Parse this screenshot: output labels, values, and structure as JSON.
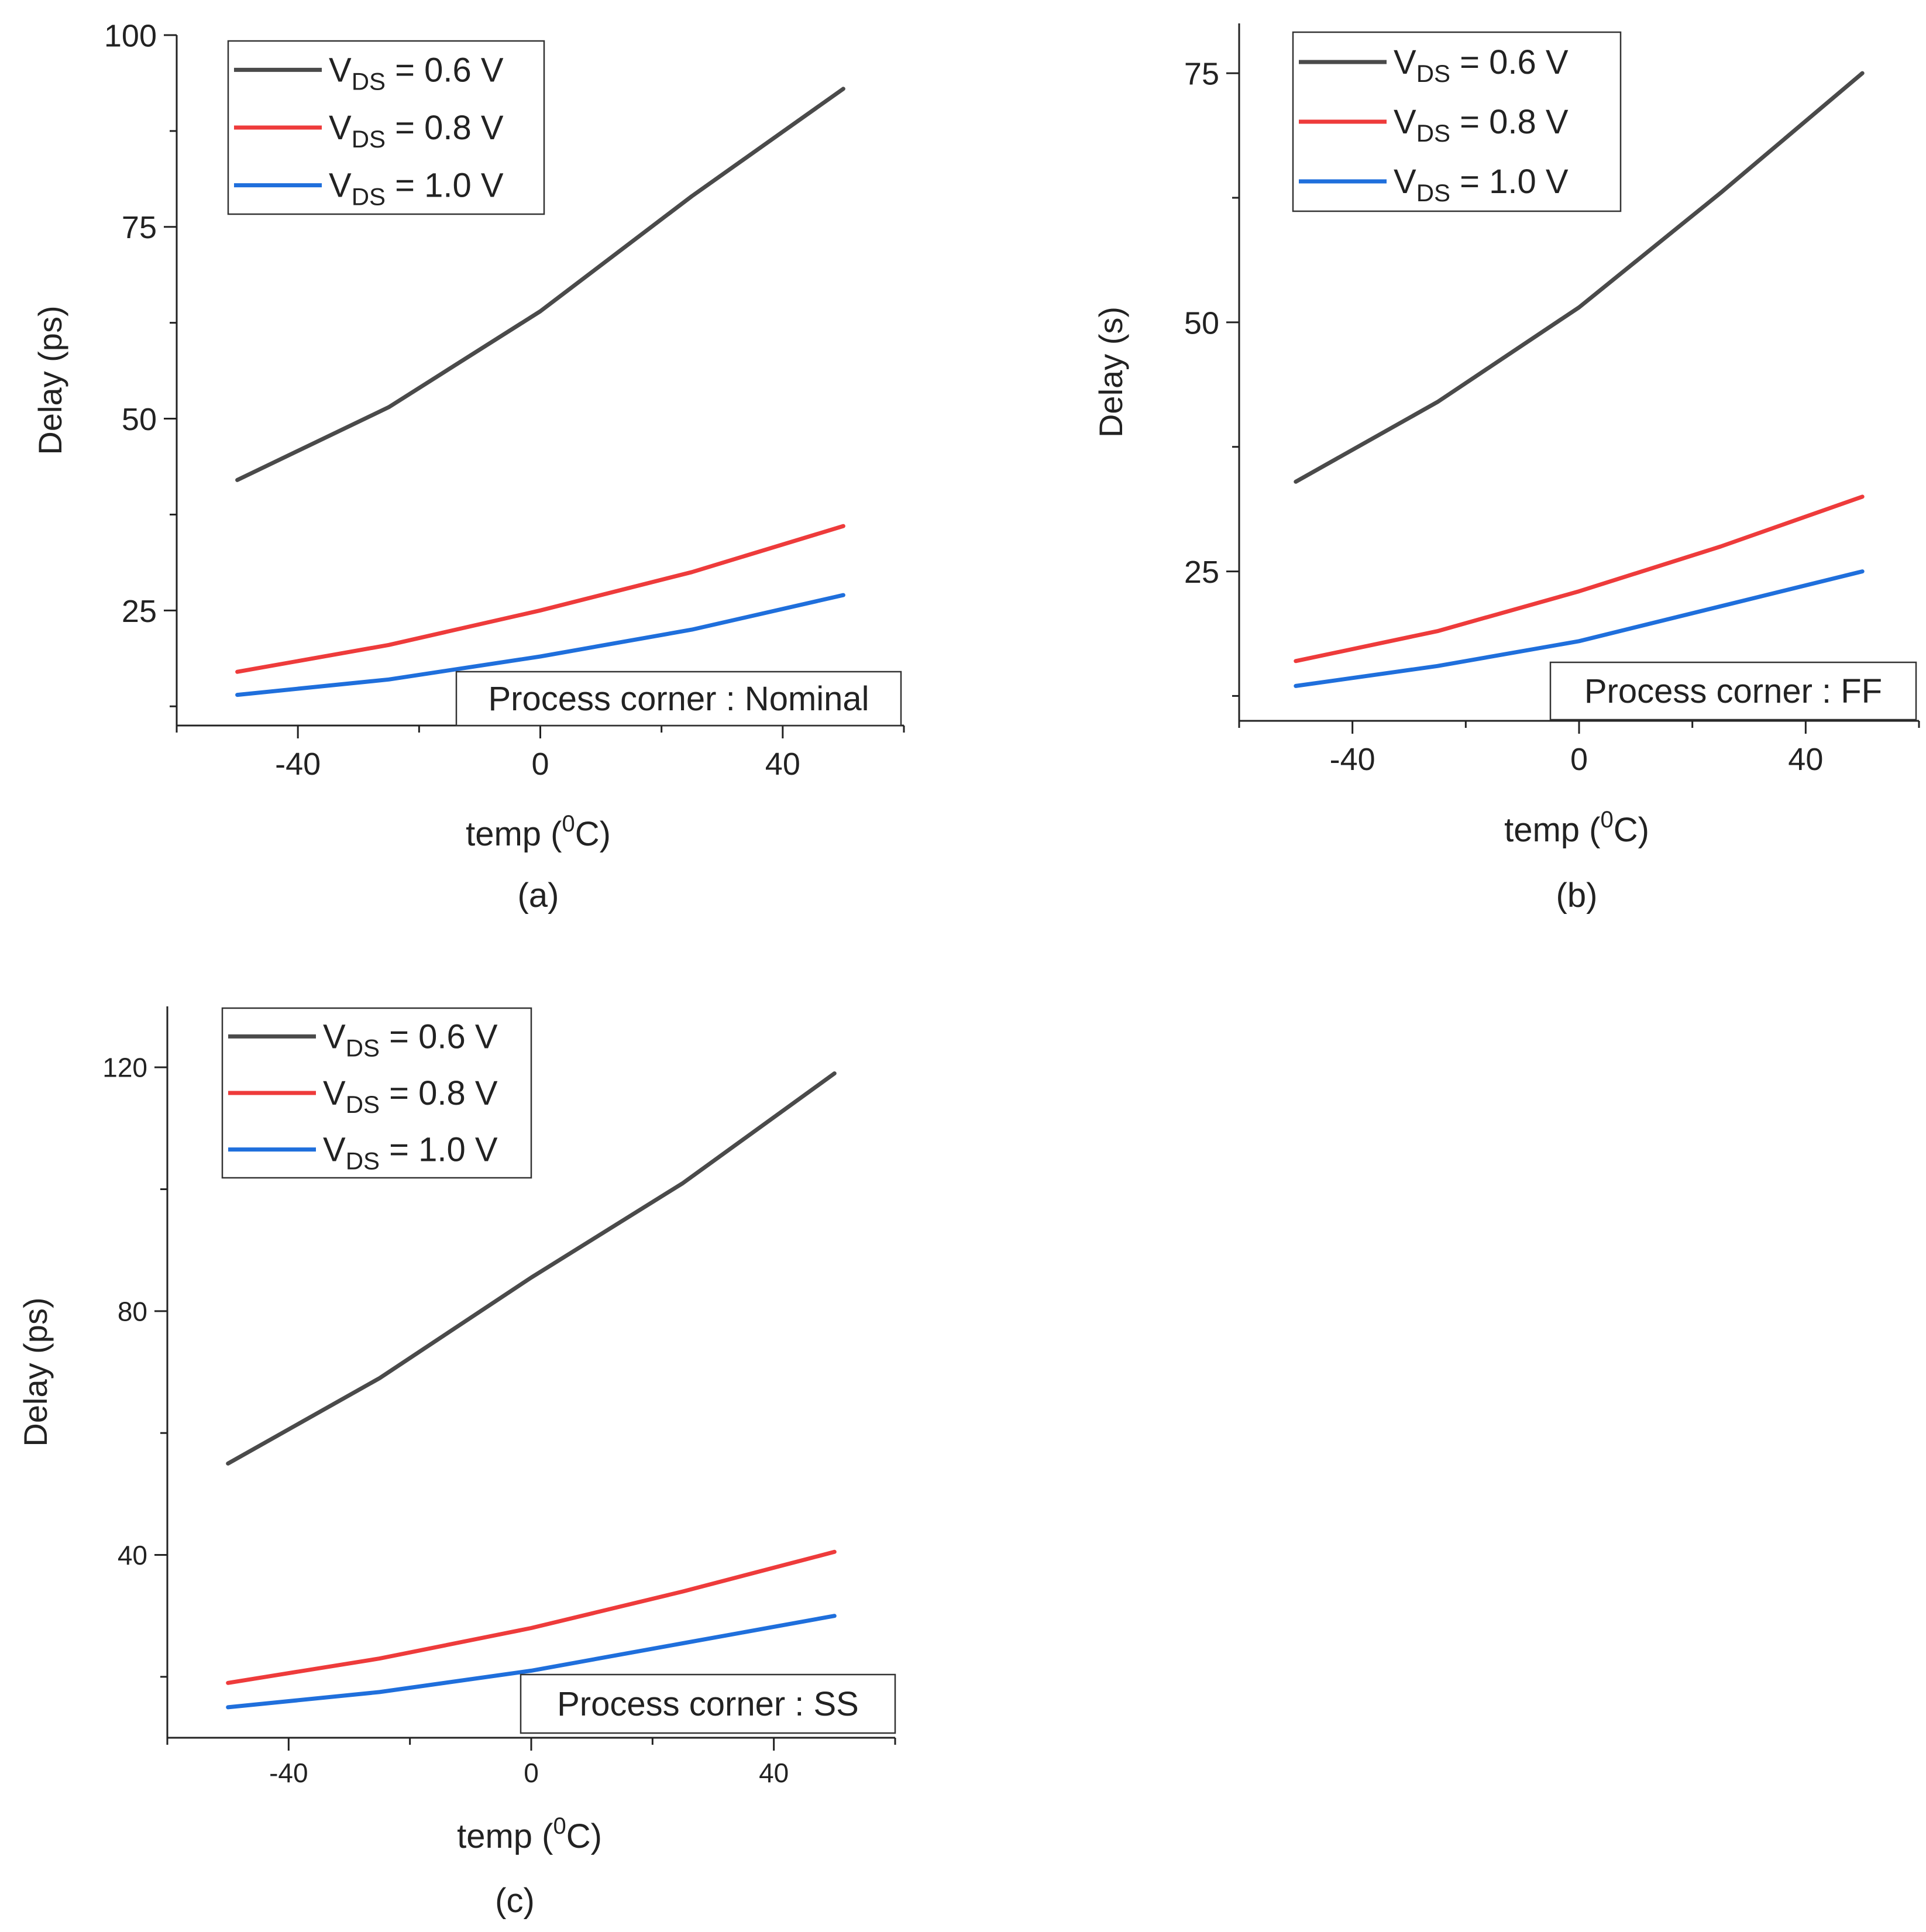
{
  "series_colors": {
    "0.6": "#4a4a4a",
    "0.8": "#ee3b3b",
    "1.0": "#1f6fdc"
  },
  "chart_data": [
    {
      "type": "line",
      "panel_label": "(a)",
      "xlabel_main": "temp (",
      "xlabel_sup": "0",
      "xlabel_end": "C)",
      "ylabel": "Delay (ps)",
      "annotation": "Process corner : Nominal",
      "xlim": [
        -60,
        60
      ],
      "ylim": [
        10,
        100
      ],
      "xticks": [
        -40,
        0,
        40
      ],
      "xticklabels": [
        "-40",
        "0",
        "40"
      ],
      "yticks": [
        25,
        50,
        75,
        100
      ],
      "yticklabels": [
        "25",
        "50",
        "75",
        "100"
      ],
      "yminor": [
        12.5,
        37.5,
        62.5,
        87.5
      ],
      "xminor": [
        -60,
        -20,
        20,
        60
      ],
      "legend_position": "top-left",
      "x": [
        -50,
        -25,
        0,
        25,
        50
      ],
      "series": [
        {
          "key": "0.6",
          "label_main": "V",
          "label_sub": "DS",
          "label_end": " = 0.6 V",
          "values": [
            42,
            51.5,
            64,
            79,
            93
          ]
        },
        {
          "key": "0.8",
          "label_main": "V",
          "label_sub": "DS",
          "label_end": " = 0.8 V",
          "values": [
            17,
            20.5,
            25,
            30,
            36
          ]
        },
        {
          "key": "1.0",
          "label_main": "V",
          "label_sub": "DS",
          "label_end": " = 1.0 V",
          "values": [
            14,
            16,
            19,
            22.5,
            27
          ]
        }
      ]
    },
    {
      "type": "line",
      "panel_label": "(b)",
      "xlabel_main": "temp (",
      "xlabel_sup": "0",
      "xlabel_end": "C)",
      "ylabel": "Delay (s)",
      "annotation": "Process corner : FF",
      "xlim": [
        -60,
        60
      ],
      "ylim": [
        10,
        80
      ],
      "xticks": [
        -40,
        0,
        40
      ],
      "xticklabels": [
        "-40",
        "0",
        "40"
      ],
      "yticks": [
        25,
        50,
        75
      ],
      "yticklabels": [
        "25",
        "50",
        "75"
      ],
      "yminor": [
        12.5,
        37.5,
        62.5
      ],
      "xminor": [
        -60,
        -20,
        20,
        60
      ],
      "legend_position": "top-left",
      "x": [
        -50,
        -25,
        0,
        25,
        50
      ],
      "series": [
        {
          "key": "0.6",
          "label_main": "V",
          "label_sub": "DS",
          "label_end": " = 0.6 V",
          "values": [
            34,
            42,
            51.5,
            63,
            75
          ]
        },
        {
          "key": "0.8",
          "label_main": "V",
          "label_sub": "DS",
          "label_end": " = 0.8 V",
          "values": [
            16,
            19,
            23,
            27.5,
            32.5
          ]
        },
        {
          "key": "1.0",
          "label_main": "V",
          "label_sub": "DS",
          "label_end": " = 1.0 V",
          "values": [
            13.5,
            15.5,
            18,
            21.5,
            25
          ]
        }
      ]
    },
    {
      "type": "line",
      "panel_label": "(c)",
      "xlabel_main": "temp (",
      "xlabel_sup": "0",
      "xlabel_end": "C)",
      "ylabel": "Delay (ps)",
      "annotation": "Process corner : SS",
      "xlim": [
        -60,
        60
      ],
      "ylim": [
        10,
        130
      ],
      "xticks": [
        -40,
        0,
        40
      ],
      "xticklabels": [
        "-40",
        "0",
        "40"
      ],
      "yticks": [
        40,
        80,
        120
      ],
      "yticklabels": [
        "40",
        "80",
        "120"
      ],
      "yminor": [
        20,
        60,
        100
      ],
      "xminor": [
        -60,
        -20,
        20,
        60
      ],
      "legend_position": "top-left",
      "x": [
        -50,
        -25,
        0,
        25,
        50
      ],
      "series": [
        {
          "key": "0.6",
          "label_main": "V",
          "label_sub": "DS",
          "label_end": " = 0.6 V",
          "values": [
            55,
            69,
            85.5,
            101,
            119
          ]
        },
        {
          "key": "0.8",
          "label_main": "V",
          "label_sub": "DS",
          "label_end": " = 0.8 V",
          "values": [
            19,
            23,
            28,
            34,
            40.5
          ]
        },
        {
          "key": "1.0",
          "label_main": "V",
          "label_sub": "DS",
          "label_end": " = 1.0 V",
          "values": [
            15,
            17.5,
            21,
            25.5,
            30
          ]
        }
      ]
    }
  ]
}
